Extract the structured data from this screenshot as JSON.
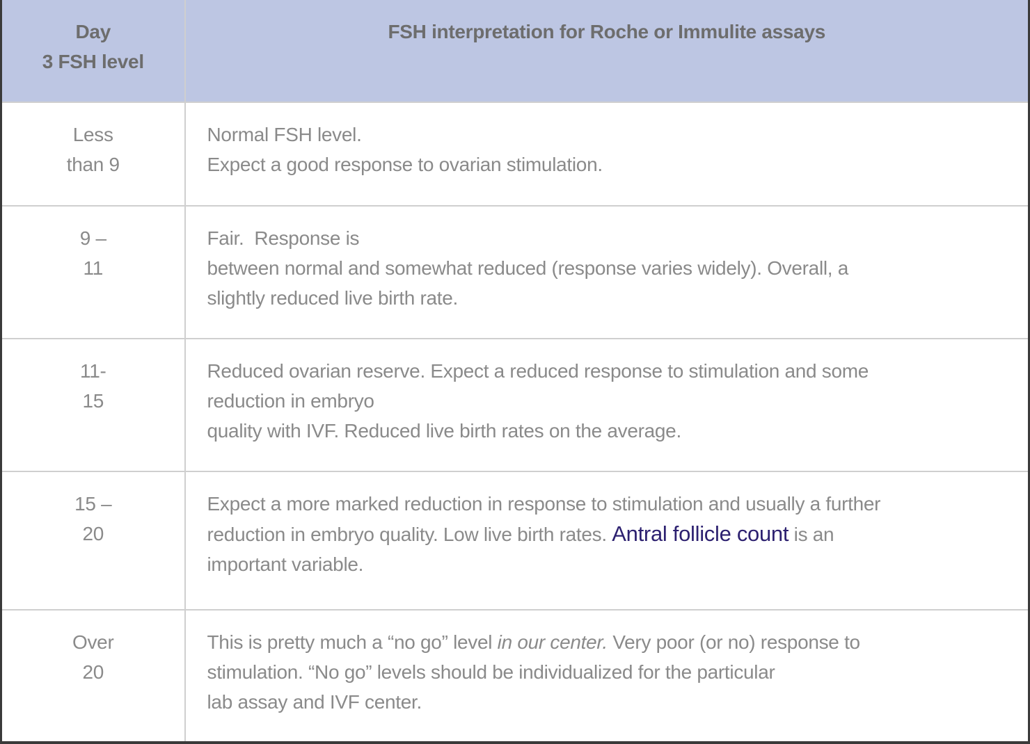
{
  "table": {
    "header": {
      "level_lines": [
        "Day",
        "3 FSH level"
      ],
      "interpretation": "FSH interpretation for Roche or Immulite assays"
    },
    "rows": [
      {
        "level_lines": [
          "Less",
          "than 9"
        ],
        "interpretation_lines": [
          [
            {
              "text": "Normal FSH level."
            }
          ],
          [
            {
              "text": "Expect a good response to ovarian stimulation."
            }
          ]
        ]
      },
      {
        "level_lines": [
          "9 –",
          "11"
        ],
        "interpretation_lines": [
          [
            {
              "text": "Fair.  Response is"
            }
          ],
          [
            {
              "text": "between normal and somewhat reduced (response varies widely). Overall, a"
            }
          ],
          [
            {
              "text": "slightly reduced live birth rate."
            }
          ]
        ]
      },
      {
        "level_lines": [
          "11-",
          "15"
        ],
        "interpretation_lines": [
          [
            {
              "text": "Reduced ovarian reserve. Expect a reduced response to stimulation and some"
            }
          ],
          [
            {
              "text": "reduction in embryo"
            }
          ],
          [
            {
              "text": "quality with IVF. Reduced live birth rates on the average."
            }
          ]
        ]
      },
      {
        "level_lines": [
          "15 –",
          "20"
        ],
        "interpretation_lines": [
          [
            {
              "text": "Expect a more marked reduction in response to stimulation and usually a further"
            }
          ],
          [
            {
              "text": "reduction in embryo quality. Low live birth rates. "
            },
            {
              "text": "Antral follicle count",
              "style": "link"
            },
            {
              "text": " is an"
            }
          ],
          [
            {
              "text": "important variable."
            }
          ]
        ]
      },
      {
        "level_lines": [
          "Over",
          "20"
        ],
        "interpretation_lines": [
          [
            {
              "text": "This is pretty much a “no go” level "
            },
            {
              "text": "in our center.",
              "style": "italic"
            },
            {
              "text": " Very poor (or no) response to"
            }
          ],
          [
            {
              "text": "stimulation. “No go” levels should be individualized for the particular"
            }
          ],
          [
            {
              "text": "lab assay and IVF center."
            }
          ]
        ]
      }
    ]
  },
  "colors": {
    "header_background": "#bdc6e3",
    "header_text": "#6d6d6d",
    "body_text": "#8a8a8a",
    "link_text": "#2d2170",
    "grid_line": "#cfcfcf",
    "outer_border": "#3a3a3a"
  }
}
